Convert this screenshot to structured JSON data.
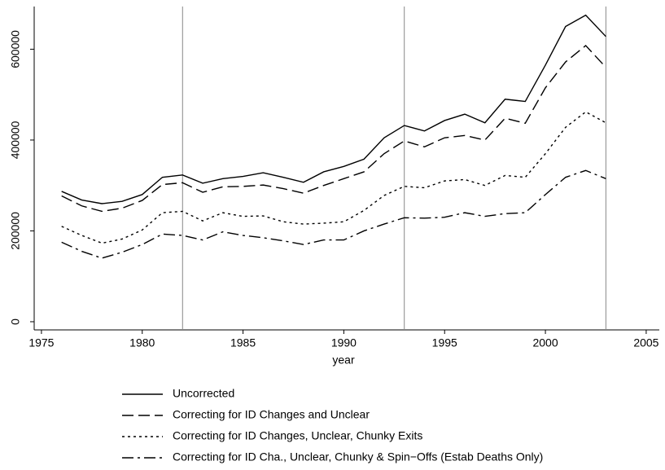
{
  "chart_data": {
    "type": "line",
    "x_label": "year",
    "x": [
      1976,
      1977,
      1978,
      1979,
      1980,
      1981,
      1982,
      1983,
      1984,
      1985,
      1986,
      1987,
      1988,
      1989,
      1990,
      1991,
      1992,
      1993,
      1994,
      1995,
      1996,
      1997,
      1998,
      1999,
      2000,
      2001,
      2002,
      2003
    ],
    "series": [
      {
        "name": "Uncorrected",
        "color": "#000000",
        "dash": "solid",
        "values": [
          287000,
          268000,
          260000,
          265000,
          280000,
          318000,
          323000,
          305000,
          315000,
          320000,
          328000,
          318000,
          307000,
          330000,
          342000,
          358000,
          405000,
          432000,
          420000,
          443000,
          457000,
          438000,
          490000,
          485000,
          565000,
          650000,
          675000,
          628000
        ]
      },
      {
        "name": "Correcting for ID Changes and Unclear",
        "color": "#000000",
        "dash": "dashed",
        "values": [
          277000,
          255000,
          243000,
          250000,
          267000,
          302000,
          306000,
          285000,
          297000,
          298000,
          301000,
          293000,
          283000,
          300000,
          315000,
          330000,
          370000,
          398000,
          385000,
          405000,
          410000,
          400000,
          448000,
          437000,
          515000,
          572000,
          608000,
          560000
        ]
      },
      {
        "name": "Correcting for ID Changes, Unclear, Chunky Exits",
        "color": "#000000",
        "dash": "dotted",
        "values": [
          210000,
          190000,
          173000,
          182000,
          202000,
          240000,
          243000,
          222000,
          240000,
          232000,
          233000,
          220000,
          215000,
          217000,
          220000,
          245000,
          278000,
          298000,
          295000,
          310000,
          313000,
          300000,
          322000,
          318000,
          370000,
          428000,
          462000,
          438000
        ]
      },
      {
        "name": "Correcting for ID Cha., Unclear, Chunky & Spin−Offs (Estab Deaths Only)",
        "color": "#000000",
        "dash": "dashdot",
        "values": [
          175000,
          155000,
          140000,
          153000,
          170000,
          193000,
          190000,
          180000,
          198000,
          190000,
          185000,
          178000,
          170000,
          180000,
          180000,
          200000,
          215000,
          229000,
          228000,
          230000,
          240000,
          232000,
          238000,
          240000,
          280000,
          318000,
          333000,
          315000
        ]
      }
    ],
    "xlim": [
      1974.64,
      2005.65
    ],
    "xticks": [
      1975,
      1980,
      1985,
      1990,
      1995,
      2000,
      2005
    ],
    "ylim": [
      -18000,
      694000
    ],
    "yticks": [
      0,
      200000,
      400000,
      600000
    ],
    "vlines": [
      1982,
      1993,
      2003
    ],
    "legend": "bottom"
  }
}
